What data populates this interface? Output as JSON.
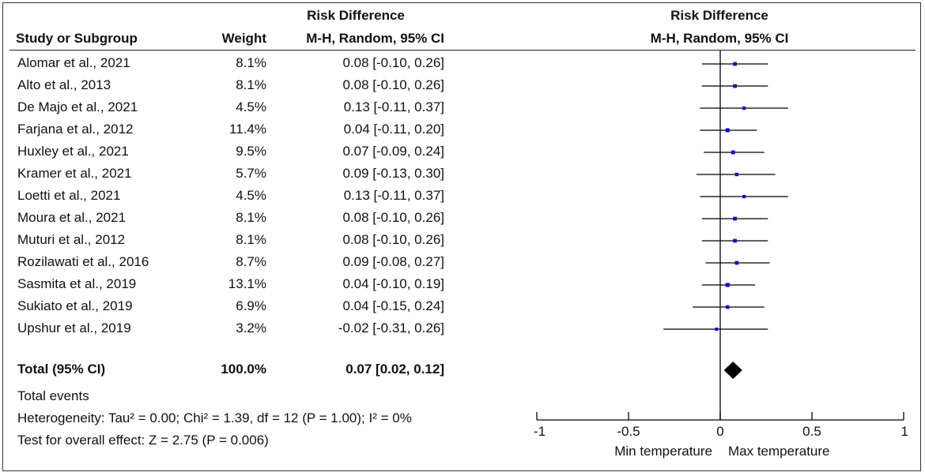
{
  "header": {
    "group_title_left": "Risk Difference",
    "group_title_right": "Risk Difference",
    "col_study": "Study or Subgroup",
    "col_weight": "Weight",
    "col_method_left": "M-H, Random, 95% CI",
    "col_method_right": "M-H, Random, 95% CI"
  },
  "studies": [
    {
      "name": "Alomar et al., 2021",
      "weight": "8.1%",
      "ci_text": "0.08 [-0.10, 0.26]",
      "est": 0.08,
      "lo": -0.1,
      "hi": 0.26,
      "w": 8.1
    },
    {
      "name": "Alto et al., 2013",
      "weight": "8.1%",
      "ci_text": "0.08 [-0.10, 0.26]",
      "est": 0.08,
      "lo": -0.1,
      "hi": 0.26,
      "w": 8.1
    },
    {
      "name": "De Majo et al., 2021",
      "weight": "4.5%",
      "ci_text": "0.13 [-0.11, 0.37]",
      "est": 0.13,
      "lo": -0.11,
      "hi": 0.37,
      "w": 4.5
    },
    {
      "name": "Farjana et al., 2012",
      "weight": "11.4%",
      "ci_text": "0.04 [-0.11, 0.20]",
      "est": 0.04,
      "lo": -0.11,
      "hi": 0.2,
      "w": 11.4
    },
    {
      "name": "Huxley et al., 2021",
      "weight": "9.5%",
      "ci_text": "0.07 [-0.09, 0.24]",
      "est": 0.07,
      "lo": -0.09,
      "hi": 0.24,
      "w": 9.5
    },
    {
      "name": "Kramer et al., 2021",
      "weight": "5.7%",
      "ci_text": "0.09 [-0.13, 0.30]",
      "est": 0.09,
      "lo": -0.13,
      "hi": 0.3,
      "w": 5.7
    },
    {
      "name": "Loetti et al., 2021",
      "weight": "4.5%",
      "ci_text": "0.13 [-0.11, 0.37]",
      "est": 0.13,
      "lo": -0.11,
      "hi": 0.37,
      "w": 4.5
    },
    {
      "name": "Moura et al., 2021",
      "weight": "8.1%",
      "ci_text": "0.08 [-0.10, 0.26]",
      "est": 0.08,
      "lo": -0.1,
      "hi": 0.26,
      "w": 8.1
    },
    {
      "name": "Muturi et al., 2012",
      "weight": "8.1%",
      "ci_text": "0.08 [-0.10, 0.26]",
      "est": 0.08,
      "lo": -0.1,
      "hi": 0.26,
      "w": 8.1
    },
    {
      "name": "Rozilawati et al., 2016",
      "weight": "8.7%",
      "ci_text": "0.09 [-0.08, 0.27]",
      "est": 0.09,
      "lo": -0.08,
      "hi": 0.27,
      "w": 8.7
    },
    {
      "name": "Sasmita et al., 2019",
      "weight": "13.1%",
      "ci_text": "0.04 [-0.10, 0.19]",
      "est": 0.04,
      "lo": -0.1,
      "hi": 0.19,
      "w": 13.1
    },
    {
      "name": "Sukiato et al., 2019",
      "weight": "6.9%",
      "ci_text": "0.04 [-0.15, 0.24]",
      "est": 0.04,
      "lo": -0.15,
      "hi": 0.24,
      "w": 6.9
    },
    {
      "name": "Upshur et al., 2019",
      "weight": "3.2%",
      "ci_text": "-0.02 [-0.31, 0.26]",
      "est": -0.02,
      "lo": -0.31,
      "hi": 0.26,
      "w": 3.2
    }
  ],
  "total": {
    "label": "Total (95% CI)",
    "weight": "100.0%",
    "ci_text": "0.07 [0.02, 0.12]",
    "est": 0.07,
    "lo": 0.02,
    "hi": 0.12
  },
  "footer": {
    "total_events": "Total events",
    "heterogeneity": "Heterogeneity: Tau² = 0.00; Chi² = 1.39, df = 12 (P = 1.00); I² = 0%",
    "overall_effect": "Test for overall effect: Z = 2.75 (P = 0.006)"
  },
  "axis": {
    "ticks": [
      -1,
      -0.5,
      0,
      0.5,
      1
    ],
    "tick_labels": [
      "-1",
      "-0.5",
      "0",
      "0.5",
      "1"
    ],
    "left_label": "Min temperature",
    "right_label": "Max temperature"
  },
  "colors": {
    "marker": "#1010c0",
    "line": "#000000",
    "diamond": "#000000"
  },
  "chart_data": {
    "type": "forest",
    "title": "Risk Difference M-H, Random, 95% CI",
    "xlim": [
      -1,
      1
    ],
    "xlabel_left": "Min temperature",
    "xlabel_right": "Max temperature",
    "studies": [
      "Alomar et al., 2021",
      "Alto et al., 2013",
      "De Majo et al., 2021",
      "Farjana et al., 2012",
      "Huxley et al., 2021",
      "Kramer et al., 2021",
      "Loetti et al., 2021",
      "Moura et al., 2021",
      "Muturi et al., 2012",
      "Rozilawati et al., 2016",
      "Sasmita et al., 2019",
      "Sukiato et al., 2019",
      "Upshur et al., 2019"
    ],
    "estimates": [
      0.08,
      0.08,
      0.13,
      0.04,
      0.07,
      0.09,
      0.13,
      0.08,
      0.08,
      0.09,
      0.04,
      0.04,
      -0.02
    ],
    "lower": [
      -0.1,
      -0.1,
      -0.11,
      -0.11,
      -0.09,
      -0.13,
      -0.11,
      -0.1,
      -0.1,
      -0.08,
      -0.1,
      -0.15,
      -0.31
    ],
    "upper": [
      0.26,
      0.26,
      0.37,
      0.2,
      0.24,
      0.3,
      0.37,
      0.26,
      0.26,
      0.27,
      0.19,
      0.24,
      0.26
    ],
    "weights": [
      8.1,
      8.1,
      4.5,
      11.4,
      9.5,
      5.7,
      4.5,
      8.1,
      8.1,
      8.7,
      13.1,
      6.9,
      3.2
    ],
    "pooled": {
      "estimate": 0.07,
      "lower": 0.02,
      "upper": 0.12
    }
  }
}
